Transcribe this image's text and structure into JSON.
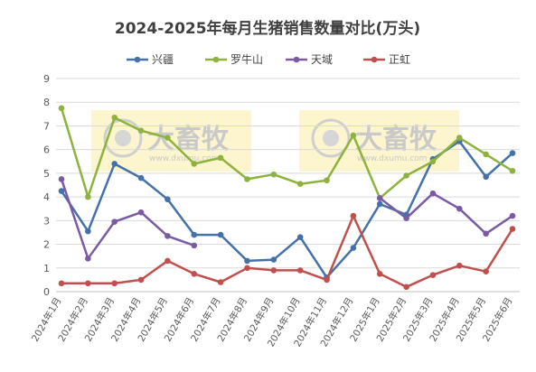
{
  "chart_data": {
    "type": "line",
    "title": "2024-2025年每月生猪销售数量对比(万头)",
    "xlabel": "",
    "ylabel": "",
    "ylim": [
      0,
      9
    ],
    "yticks": [
      0,
      1,
      2,
      3,
      4,
      5,
      6,
      7,
      8,
      9
    ],
    "grid": true,
    "legend_position": "top",
    "categories": [
      "2024年1月",
      "2024年2月",
      "2024年3月",
      "2024年4月",
      "2024年5月",
      "2024年6月",
      "2024年7月",
      "2024年8月",
      "2024年9月",
      "2024年10月",
      "2024年11月",
      "2024年12月",
      "2025年1月",
      "2025年2月",
      "2025年3月",
      "2025年4月",
      "2025年5月",
      "2025年6月"
    ],
    "series": [
      {
        "name": "兴疆",
        "color": "#4472a8",
        "values": [
          4.25,
          2.55,
          5.4,
          4.8,
          3.9,
          2.4,
          2.4,
          1.3,
          1.35,
          2.3,
          0.6,
          1.85,
          3.7,
          3.25,
          5.6,
          6.35,
          4.85,
          5.85
        ]
      },
      {
        "name": "罗牛山",
        "color": "#8db33f",
        "values": [
          7.75,
          4.0,
          7.35,
          6.8,
          6.5,
          5.4,
          5.65,
          4.75,
          4.95,
          4.55,
          4.7,
          6.6,
          3.95,
          4.9,
          5.5,
          6.5,
          5.8,
          5.1
        ]
      },
      {
        "name": "天域",
        "color": "#7a5ba3",
        "values": [
          4.75,
          1.4,
          2.95,
          3.35,
          2.35,
          1.95,
          null,
          null,
          null,
          null,
          null,
          null,
          3.95,
          3.1,
          4.15,
          3.5,
          2.45,
          3.2
        ]
      },
      {
        "name": "正虹",
        "color": "#c0504d",
        "values": [
          0.35,
          0.35,
          0.35,
          0.5,
          1.3,
          0.75,
          0.4,
          1.0,
          0.9,
          0.9,
          0.5,
          3.2,
          0.75,
          0.2,
          0.7,
          1.1,
          0.85,
          2.65
        ]
      }
    ]
  },
  "watermark": {
    "text": "大畜牧",
    "url": "www.dxumu.com"
  }
}
